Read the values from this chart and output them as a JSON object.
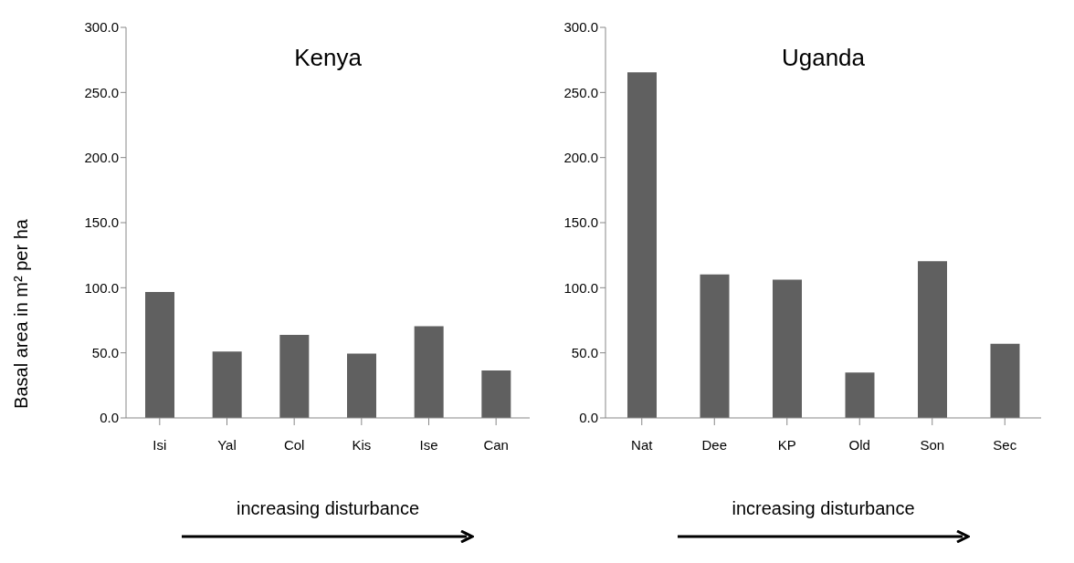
{
  "chart_data": [
    {
      "type": "bar",
      "title": "Kenya",
      "ylabel": "Basal area in m² per ha",
      "xlabel": "increasing disturbance",
      "categories": [
        "Isi",
        "Yal",
        "Col",
        "Kis",
        "Ise",
        "Can"
      ],
      "values": [
        96.7,
        51.0,
        63.8,
        49.5,
        70.4,
        36.4
      ],
      "color": "#606060",
      "ylim": [
        0,
        300
      ],
      "yticks": [
        {
          "value": 0,
          "label": "0.0"
        },
        {
          "value": 50,
          "label": "50.0"
        },
        {
          "value": 100,
          "label": "100.0"
        },
        {
          "value": 150,
          "label": "150.0"
        },
        {
          "value": 200,
          "label": "200.0"
        },
        {
          "value": 250,
          "label": "250.0"
        },
        {
          "value": 300,
          "label": "300.0"
        }
      ],
      "grid": false
    },
    {
      "type": "bar",
      "title": "Uganda",
      "xlabel": "increasing disturbance",
      "categories": [
        "Nat",
        "Dee",
        "KP",
        "Old",
        "Son",
        "Sec"
      ],
      "values": [
        265.4,
        110.3,
        106.2,
        34.9,
        120.3,
        56.9
      ],
      "color": "#606060",
      "ylim": [
        0,
        300
      ],
      "yticks": [
        {
          "value": 0,
          "label": "0.0"
        },
        {
          "value": 50,
          "label": "50.0"
        },
        {
          "value": 100,
          "label": "100.0"
        },
        {
          "value": 150,
          "label": "150.0"
        },
        {
          "value": 200,
          "label": "200.0"
        },
        {
          "value": 250,
          "label": "250.0"
        },
        {
          "value": 300,
          "label": "300.0"
        }
      ],
      "grid": false
    }
  ]
}
